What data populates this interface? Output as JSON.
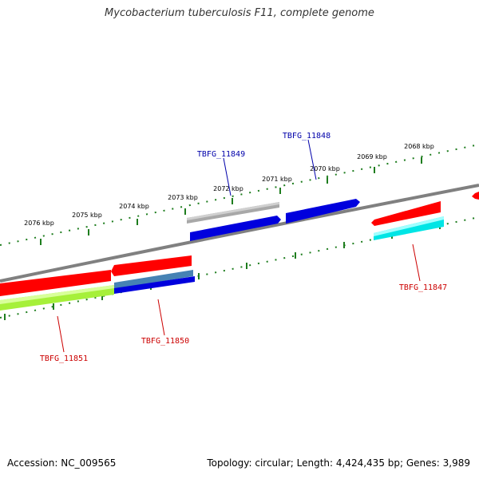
{
  "title": "Mycobacterium tuberculosis F11, complete genome",
  "footer": {
    "accession": "Accession: NC_009565",
    "summary": "Topology: circular; Length: 4,424,435 bp; Genes: 3,989"
  },
  "colors": {
    "backbone": "#808080",
    "ticks": "#1e7d1e",
    "label_forward": "#0000aa",
    "label_reverse": "#cc0000"
  },
  "scale": {
    "unit": "kbp",
    "labels": [
      "2068 kbp",
      "2069 kbp",
      "2070 kbp",
      "2071 kbp",
      "2072 kbp",
      "2073 kbp",
      "2074 kbp",
      "2075 kbp",
      "2076 kbp"
    ]
  },
  "genes": [
    {
      "label": "TBFG_11847",
      "strand": "reverse"
    },
    {
      "label": "TBFG_11848",
      "strand": "forward"
    },
    {
      "label": "TBFG_11849",
      "strand": "forward"
    },
    {
      "label": "TBFG_11850",
      "strand": "reverse"
    },
    {
      "label": "TBFG_11851",
      "strand": "reverse"
    }
  ]
}
